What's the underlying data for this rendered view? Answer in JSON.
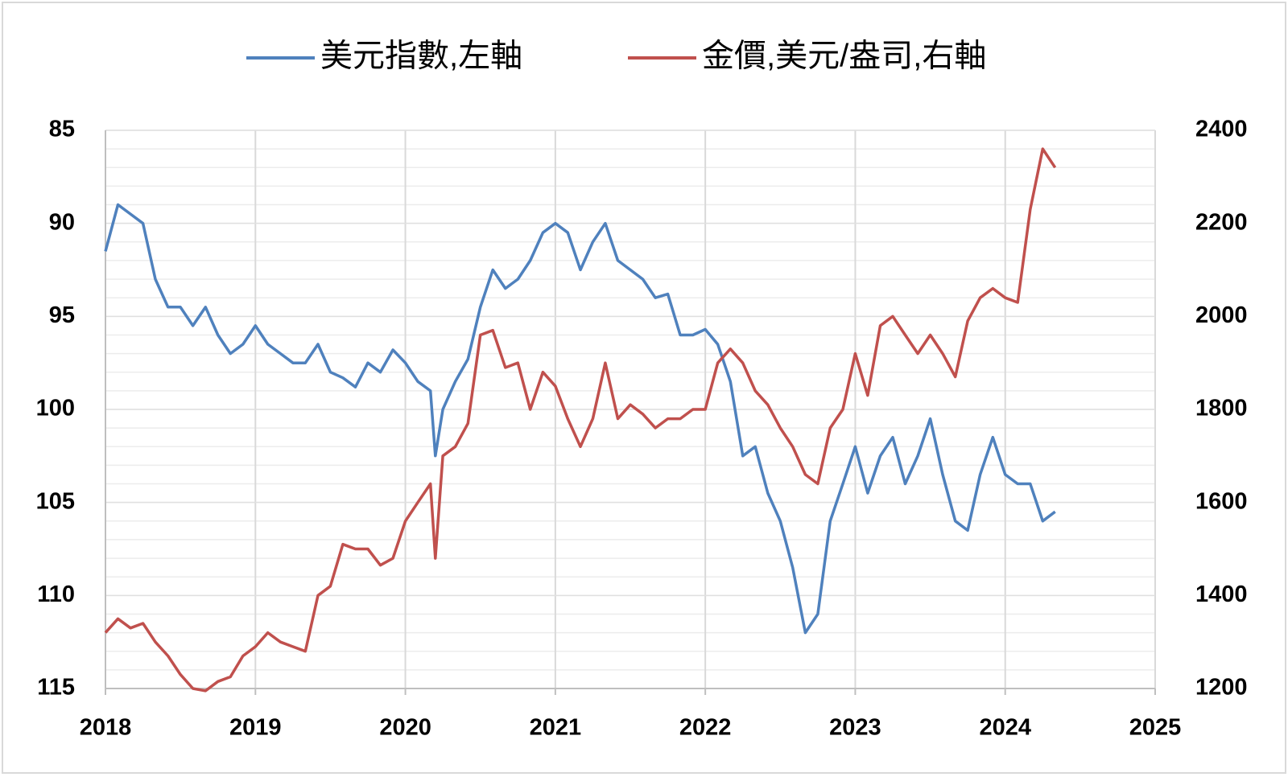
{
  "chart_data": {
    "type": "line",
    "x": [
      2018.0,
      2018.083,
      2018.167,
      2018.25,
      2018.333,
      2018.417,
      2018.5,
      2018.583,
      2018.667,
      2018.75,
      2018.833,
      2018.917,
      2019.0,
      2019.083,
      2019.167,
      2019.25,
      2019.333,
      2019.417,
      2019.5,
      2019.583,
      2019.667,
      2019.75,
      2019.833,
      2019.917,
      2020.0,
      2020.083,
      2020.167,
      2020.2,
      2020.25,
      2020.333,
      2020.417,
      2020.5,
      2020.583,
      2020.667,
      2020.75,
      2020.833,
      2020.917,
      2021.0,
      2021.083,
      2021.167,
      2021.25,
      2021.333,
      2021.417,
      2021.5,
      2021.583,
      2021.667,
      2021.75,
      2021.833,
      2021.917,
      2022.0,
      2022.083,
      2022.167,
      2022.25,
      2022.333,
      2022.417,
      2022.5,
      2022.583,
      2022.667,
      2022.75,
      2022.833,
      2022.917,
      2023.0,
      2023.083,
      2023.167,
      2023.25,
      2023.333,
      2023.417,
      2023.5,
      2023.583,
      2023.667,
      2023.75,
      2023.833,
      2023.917,
      2024.0,
      2024.083,
      2024.167,
      2024.25,
      2024.333
    ],
    "xlim": [
      2018,
      2025
    ],
    "xticks": [
      2018,
      2019,
      2020,
      2021,
      2022,
      2023,
      2024,
      2025
    ],
    "ylim": [
      85,
      115
    ],
    "y_reversed": true,
    "yticks": [
      85,
      90,
      95,
      100,
      105,
      110,
      115
    ],
    "y2lim": [
      1200,
      2400
    ],
    "y2ticks": [
      1200,
      1400,
      1600,
      1800,
      2000,
      2200,
      2400
    ],
    "grid": true,
    "minor_grid_step": 1,
    "legend": "top",
    "series": [
      {
        "name": "美元指數,左軸",
        "color": "#4f81bd",
        "axis": "y",
        "values": [
          91.5,
          89,
          89.5,
          90,
          93,
          94.5,
          94.5,
          95.5,
          94.5,
          96,
          97,
          96.5,
          95.5,
          96.5,
          97,
          97.5,
          97.5,
          96.5,
          98,
          98.3,
          98.8,
          97.5,
          98,
          96.8,
          97.5,
          98.5,
          99,
          102.5,
          100,
          98.5,
          97.3,
          94.5,
          92.5,
          93.5,
          93,
          92,
          90.5,
          90,
          90.5,
          92.5,
          91,
          90,
          92,
          92.5,
          93,
          94,
          93.8,
          96,
          96,
          95.7,
          96.5,
          98.5,
          102.5,
          102,
          104.5,
          106,
          108.5,
          112,
          111,
          106,
          104,
          102,
          104.5,
          102.5,
          101.5,
          104,
          102.5,
          100.5,
          103.5,
          106,
          106.5,
          103.5,
          101.5,
          103.5,
          104,
          104,
          106,
          105.5
        ]
      },
      {
        "name": "金價,美元/盎司,右軸",
        "color": "#c0504d",
        "axis": "y2",
        "values": [
          1320,
          1350,
          1330,
          1340,
          1300,
          1270,
          1230,
          1200,
          1195,
          1215,
          1225,
          1270,
          1290,
          1320,
          1300,
          1290,
          1280,
          1400,
          1420,
          1510,
          1500,
          1500,
          1465,
          1480,
          1560,
          1600,
          1640,
          1480,
          1700,
          1720,
          1770,
          1960,
          1970,
          1890,
          1900,
          1800,
          1880,
          1850,
          1780,
          1720,
          1780,
          1900,
          1780,
          1810,
          1790,
          1760,
          1780,
          1780,
          1800,
          1800,
          1900,
          1930,
          1900,
          1840,
          1810,
          1760,
          1720,
          1660,
          1640,
          1760,
          1800,
          1920,
          1830,
          1980,
          2000,
          1960,
          1920,
          1960,
          1920,
          1870,
          1990,
          2040,
          2060,
          2040,
          2030,
          2230,
          2360,
          2320
        ]
      }
    ]
  }
}
